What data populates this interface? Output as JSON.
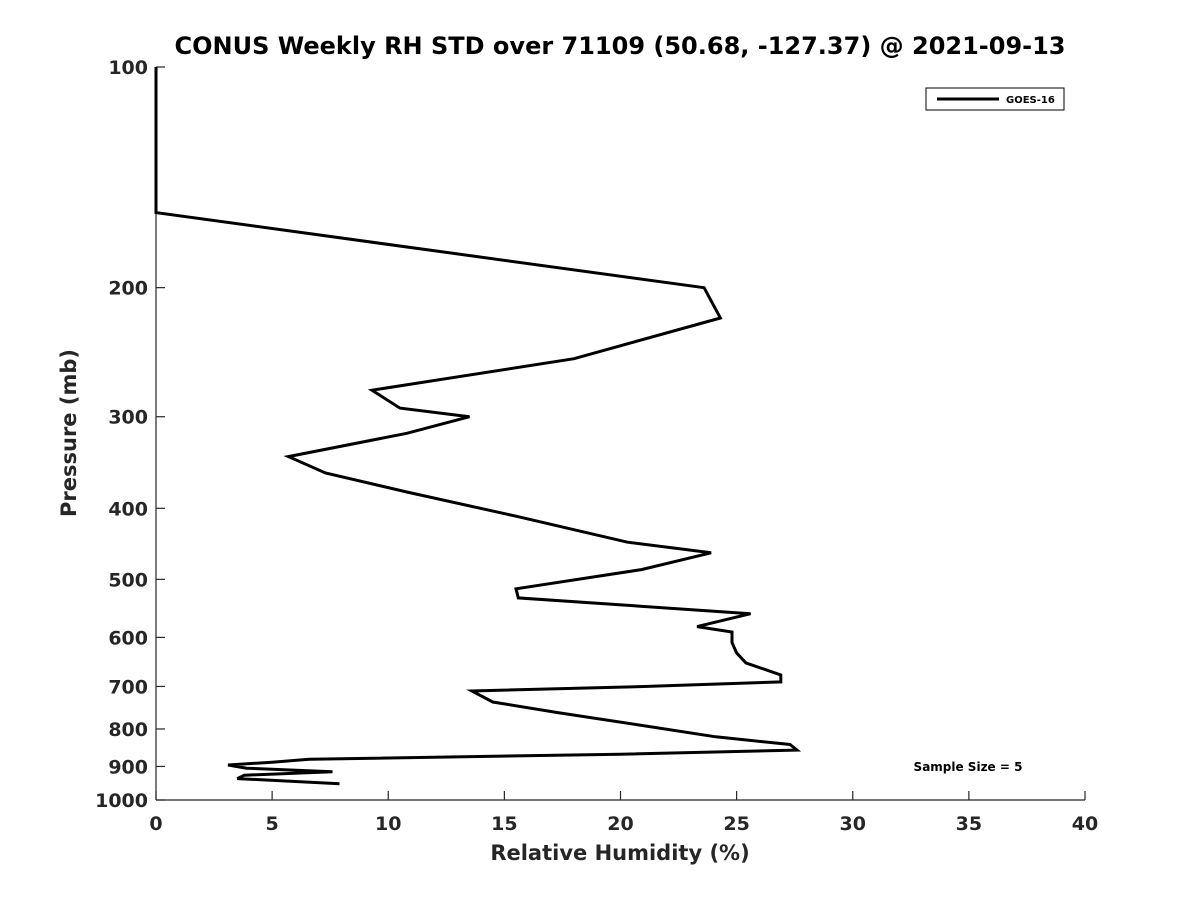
{
  "chart_data": {
    "type": "line",
    "title": "CONUS Weekly RH STD over 71109 (50.68, -127.37) @ 2021-09-13",
    "xlabel": "Relative Humidity (%)",
    "ylabel": "Pressure (mb)",
    "xlim": [
      0,
      40
    ],
    "ylim": [
      100,
      1000
    ],
    "y_scale": "log",
    "y_reversed": true,
    "x_ticks": [
      0,
      5,
      10,
      15,
      20,
      25,
      30,
      35,
      40
    ],
    "y_ticks": [
      100,
      200,
      300,
      400,
      500,
      600,
      700,
      800,
      900,
      1000
    ],
    "grid": false,
    "legend_position": "top-right",
    "annotation": "Sample Size = 5",
    "series": [
      {
        "name": "GOES-16",
        "color": "#000000",
        "points": [
          [
            0.0,
            100
          ],
          [
            0.0,
            126
          ],
          [
            0.0,
            158
          ],
          [
            23.6,
            200
          ],
          [
            24.3,
            220
          ],
          [
            18.0,
            250
          ],
          [
            9.3,
            276
          ],
          [
            10.5,
            292
          ],
          [
            13.5,
            300
          ],
          [
            10.8,
            316
          ],
          [
            5.7,
            340
          ],
          [
            7.3,
            358
          ],
          [
            10.8,
            380
          ],
          [
            15.5,
            410
          ],
          [
            20.3,
            445
          ],
          [
            23.9,
            460
          ],
          [
            20.9,
            485
          ],
          [
            15.5,
            515
          ],
          [
            15.6,
            530
          ],
          [
            25.6,
            557
          ],
          [
            23.3,
            580
          ],
          [
            24.8,
            590
          ],
          [
            24.8,
            610
          ],
          [
            25.0,
            630
          ],
          [
            25.4,
            650
          ],
          [
            26.9,
            675
          ],
          [
            26.9,
            690
          ],
          [
            21.0,
            700
          ],
          [
            13.6,
            710
          ],
          [
            14.5,
            735
          ],
          [
            17.3,
            760
          ],
          [
            20.8,
            790
          ],
          [
            24.1,
            820
          ],
          [
            27.3,
            840
          ],
          [
            27.6,
            855
          ],
          [
            20.0,
            866
          ],
          [
            6.6,
            880
          ],
          [
            5.0,
            888
          ],
          [
            3.1,
            896
          ],
          [
            3.9,
            905
          ],
          [
            7.6,
            915
          ],
          [
            3.8,
            925
          ],
          [
            3.5,
            935
          ],
          [
            7.9,
            950
          ]
        ]
      }
    ]
  }
}
